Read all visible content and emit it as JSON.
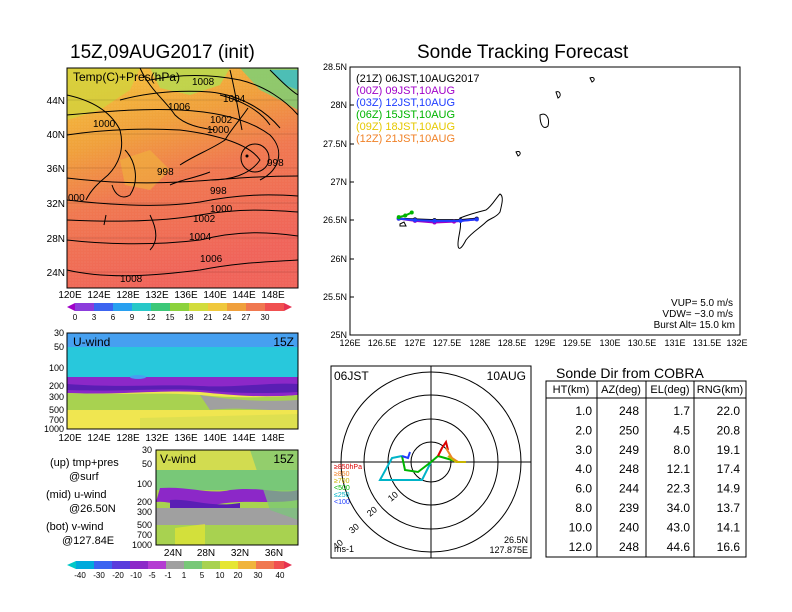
{
  "left_panel": {
    "title": "15Z,09AUG2017 (init)",
    "map_label": "Temp(C)+Pres(hPa)",
    "isobar_labels": [
      "1008",
      "1006",
      "1004",
      "1000",
      "1002",
      "1000",
      "998",
      "998",
      "998",
      "1000",
      "1002",
      "1004",
      "1006",
      "1008",
      "000"
    ],
    "lon_ticks": [
      "120E",
      "124E",
      "128E",
      "132E",
      "136E",
      "140E",
      "144E",
      "148E"
    ],
    "lat_ticks": [
      "44N",
      "40N",
      "36N",
      "32N",
      "28N",
      "24N"
    ],
    "temp_colorbar": [
      "0",
      "3",
      "6",
      "9",
      "12",
      "15",
      "18",
      "21",
      "24",
      "27",
      "30"
    ]
  },
  "u_panel": {
    "label": "U-wind",
    "time": "15Z",
    "y_ticks": [
      "30",
      "50",
      "100",
      "200",
      "300",
      "500",
      "700",
      "1000"
    ],
    "x_ticks": [
      "120E",
      "124E",
      "128E",
      "132E",
      "136E",
      "140E",
      "144E",
      "148E"
    ]
  },
  "v_panel": {
    "label": "V-wind",
    "time": "15Z",
    "y_ticks": [
      "30",
      "50",
      "100",
      "200",
      "300",
      "500",
      "700",
      "1000"
    ],
    "x_ticks": [
      "24N",
      "28N",
      "32N",
      "36N"
    ]
  },
  "legend_text": {
    "up": "(up) tmp+pres",
    "up2": "@surf",
    "mid": "(mid) u-wind",
    "mid2": "@26.50N",
    "bot": "(bot) v-wind",
    "bot2": "@127.84E"
  },
  "wind_colorbar": [
    "-40",
    "-30",
    "-20",
    "-10",
    "-5",
    "-1",
    "1",
    "5",
    "10",
    "20",
    "30",
    "40"
  ],
  "tracking": {
    "title": "Sonde Tracking Forecast",
    "legend": [
      {
        "text": "(21Z)  06JST,10AUG2017",
        "color": "#000000"
      },
      {
        "text": "(00Z)  09JST,10AUG",
        "color": "#a000c8"
      },
      {
        "text": "(03Z)  12JST,10AUG",
        "color": "#1e3cff"
      },
      {
        "text": "(06Z)  15JST,10AUG",
        "color": "#00b400"
      },
      {
        "text": "(09Z)  18JST,10AUG",
        "color": "#e6c800"
      },
      {
        "text": "(12Z)  21JST,10AUG",
        "color": "#f08228"
      }
    ],
    "y_ticks": [
      "28.5N",
      "28N",
      "27.5N",
      "27N",
      "26.5N",
      "26N",
      "25.5N",
      "25N"
    ],
    "x_ticks": [
      "126E",
      "126.5E",
      "127E",
      "127.5E",
      "128E",
      "128.5E",
      "129E",
      "129.5E",
      "130E",
      "130.5E",
      "131E",
      "131.5E",
      "132E"
    ],
    "params": [
      "VUP=  5.0  m/s",
      "VDW= −3.0  m/s",
      "Burst Alt=  15.0  km"
    ]
  },
  "hodograph": {
    "top_left": "06JST",
    "top_right": "10AUG",
    "bottom_left": "ms-1",
    "bottom_right1": "26.5N",
    "bottom_right2": "127.875E",
    "pressure_labels": [
      {
        "text": "≥850hPa",
        "color": "#dc0000"
      },
      {
        "text": "≥850",
        "color": "#f08228"
      },
      {
        "text": "≥700",
        "color": "#c8b400"
      },
      {
        "text": "<500",
        "color": "#00b400"
      },
      {
        "text": "≤250",
        "color": "#00b4c8"
      },
      {
        "text": "<100",
        "color": "#1e3cff"
      }
    ]
  },
  "sonde_table": {
    "title": "Sonde Dir from COBRA",
    "headers": [
      "HT(km)",
      "AZ(deg)",
      "EL(deg)",
      "RNG(km)"
    ],
    "rows": [
      [
        "1.0",
        "248",
        "1.7",
        "22.0"
      ],
      [
        "2.0",
        "250",
        "4.5",
        "20.8"
      ],
      [
        "3.0",
        "249",
        "8.0",
        "19.1"
      ],
      [
        "4.0",
        "248",
        "12.1",
        "17.4"
      ],
      [
        "6.0",
        "244",
        "22.3",
        "14.9"
      ],
      [
        "8.0",
        "239",
        "34.0",
        "13.7"
      ],
      [
        "10.0",
        "240",
        "43.0",
        "14.1"
      ],
      [
        "12.0",
        "248",
        "44.6",
        "16.6"
      ]
    ]
  },
  "chart_data": [
    {
      "type": "line",
      "title": "Sonde Tracking Forecast",
      "xlabel": "",
      "ylabel": "",
      "xlim": [
        126,
        132
      ],
      "ylim": [
        25,
        28.5
      ],
      "series": [
        {
          "name": "(21Z) 06JST,10AUG2017",
          "color": "#000000",
          "x": [
            126.75,
            127.0,
            127.3,
            127.7,
            127.95
          ],
          "y": [
            26.52,
            26.51,
            26.5,
            26.5,
            26.52
          ]
        },
        {
          "name": "(00Z) 09JST,10AUG",
          "color": "#a000c8",
          "x": [
            126.75,
            127.0,
            127.3,
            127.6,
            127.95
          ],
          "y": [
            26.52,
            26.49,
            26.47,
            26.48,
            26.51
          ]
        },
        {
          "name": "(03Z) 12JST,10AUG",
          "color": "#1e3cff",
          "x": [
            126.75,
            127.0,
            127.3,
            127.7,
            127.95
          ],
          "y": [
            26.52,
            26.5,
            26.49,
            26.49,
            26.51
          ]
        },
        {
          "name": "(06Z) 15JST,10AUG",
          "color": "#00b400",
          "x": [
            126.75,
            126.85,
            126.95
          ],
          "y": [
            26.54,
            26.56,
            26.6
          ]
        }
      ]
    }
  ]
}
